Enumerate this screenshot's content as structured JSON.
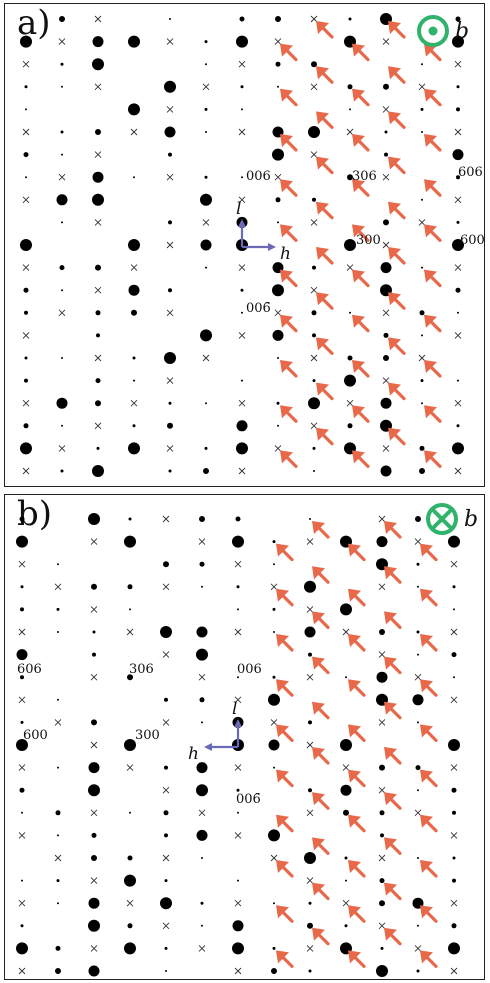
{
  "panels": [
    {
      "label": "a)",
      "axis_symbol": "b",
      "axis_direction": "out-of-page",
      "x_axis_letter": "h",
      "y_axis_letter": "l",
      "reflections": [
        {
          "text": "006",
          "sub": ""
        },
        {
          "text": "306",
          "sub": ""
        },
        {
          "text": "606",
          "sub": ""
        },
        {
          "text": "300",
          "sub": ""
        },
        {
          "text": "600",
          "sub": ""
        },
        {
          "text": "00",
          "sub": "6̄"
        }
      ]
    },
    {
      "label": "b)",
      "axis_symbol": "b",
      "axis_direction": "into-page",
      "x_axis_letter": "h",
      "y_axis_letter": "l",
      "reflections": [
        {
          "text": "606",
          "sub": ""
        },
        {
          "text": "306",
          "sub": ""
        },
        {
          "text": "006",
          "sub": ""
        },
        {
          "text": "600",
          "sub": ""
        },
        {
          "text": "300",
          "sub": ""
        },
        {
          "text": "00",
          "sub": "6̄"
        }
      ]
    }
  ],
  "colors": {
    "axis_circle": "#2fb36b",
    "arrow": "#e8684a",
    "axis_vector": "#6a6ab8",
    "spot": "#000000"
  }
}
